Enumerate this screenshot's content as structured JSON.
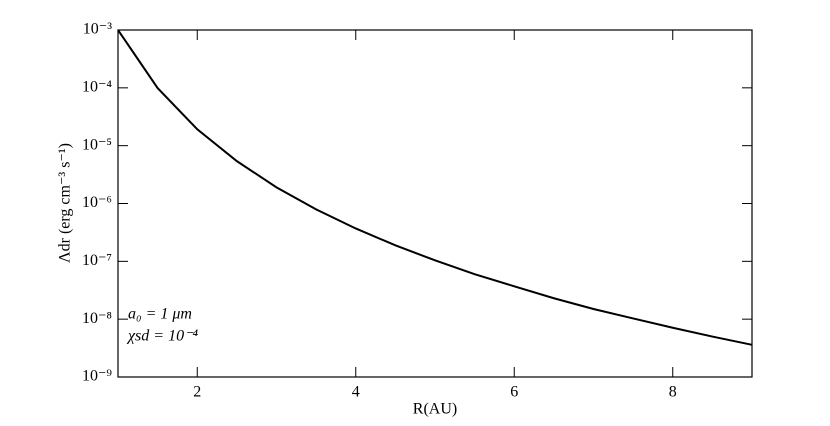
{
  "chart_data": {
    "type": "line",
    "x_label": "R(AU)",
    "y_label": "Λdr (erg cm⁻³ s⁻¹)",
    "annotations": [
      "a₀ = 1 μm",
      "χsd = 10⁻⁴"
    ],
    "log_y": true,
    "x": [
      1,
      1.5,
      2,
      2.5,
      3,
      3.5,
      4,
      4.5,
      5,
      5.5,
      6,
      6.5,
      7,
      7.5,
      8,
      8.5,
      9
    ],
    "series": [
      {
        "name": "Λdr",
        "color": "#000000",
        "values": [
          0.001,
          9.9e-05,
          1.92e-05,
          5.4e-06,
          1.9e-06,
          7.9e-07,
          3.7e-07,
          1.89e-07,
          1.04e-07,
          6e-08,
          3.7e-08,
          2.3e-08,
          1.5e-08,
          1.03e-08,
          7.1e-09,
          5e-09,
          3.6e-09
        ]
      }
    ],
    "xlim": [
      1,
      9
    ],
    "xticks": [
      2,
      4,
      6,
      8
    ],
    "ylim": [
      1e-09,
      0.001
    ],
    "yticks": [
      {
        "value": 1e-09,
        "label": "10⁻⁹"
      },
      {
        "value": 1e-08,
        "label": "10⁻⁸"
      },
      {
        "value": 1e-07,
        "label": "10⁻⁷"
      },
      {
        "value": 1e-06,
        "label": "10⁻⁶"
      },
      {
        "value": 1e-05,
        "label": "10⁻⁵"
      },
      {
        "value": 0.0001,
        "label": "10⁻⁴"
      },
      {
        "value": 0.001,
        "label": "10⁻³"
      }
    ]
  }
}
